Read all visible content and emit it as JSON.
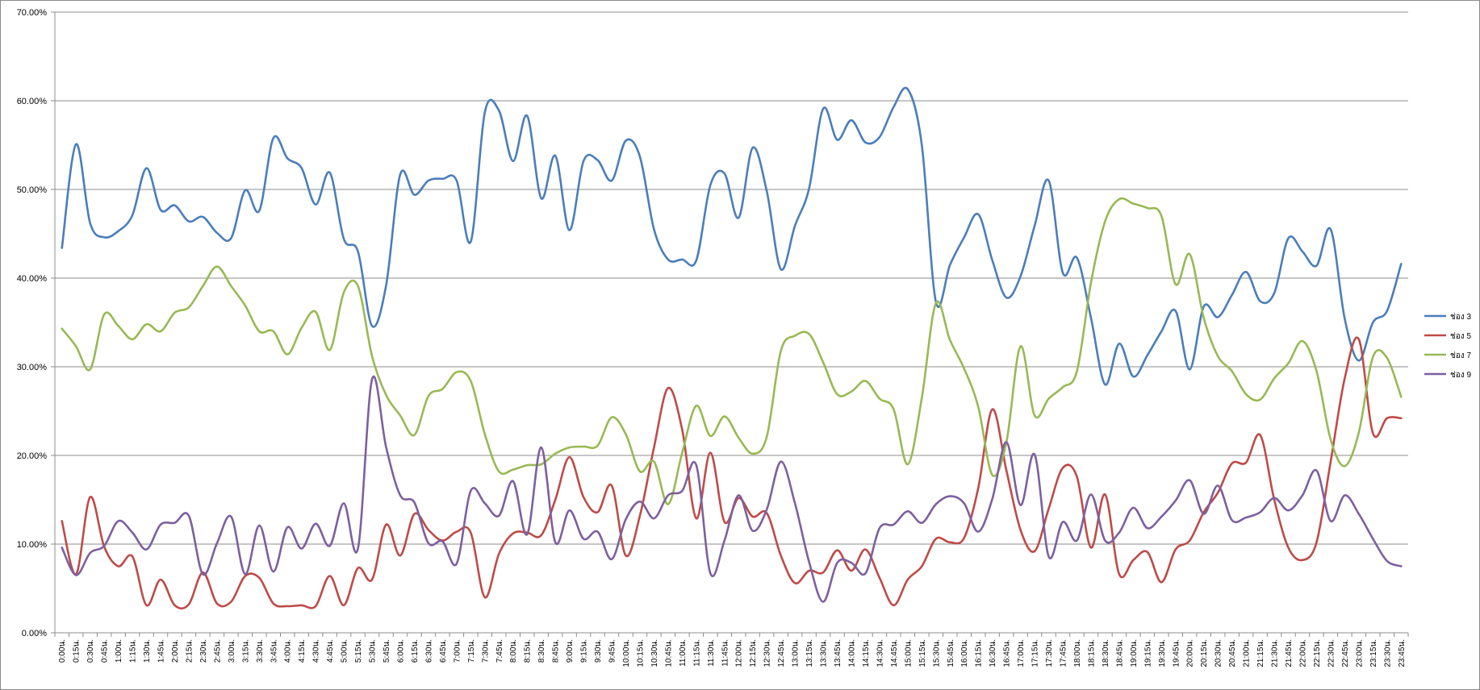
{
  "chart_data": {
    "type": "line",
    "title": "",
    "xlabel": "",
    "ylabel": "",
    "ylim": [
      0,
      0.7
    ],
    "y_ticks": [
      0,
      0.1,
      0.2,
      0.3,
      0.4,
      0.5,
      0.6,
      0.7
    ],
    "y_tick_labels": [
      "0.00%",
      "10.00%",
      "20.00%",
      "30.00%",
      "40.00%",
      "50.00%",
      "60.00%",
      "70.00%"
    ],
    "grid": true,
    "legend_position": "right",
    "smooth": true,
    "x": [
      "0:00น.",
      "0:15น.",
      "0:30น.",
      "0:45น.",
      "1:00น.",
      "1:15น.",
      "1:30น.",
      "1:45น.",
      "2:00น.",
      "2:15น.",
      "2:30น.",
      "2:45น.",
      "3:00น.",
      "3:15น.",
      "3:30น.",
      "3:45น.",
      "4:00น.",
      "4:15น.",
      "4:30น.",
      "4:45น.",
      "5:00น.",
      "5:15น.",
      "5:30น.",
      "5:45น.",
      "6:00น.",
      "6:15น.",
      "6:30น.",
      "6:45น.",
      "7:00น.",
      "7:15น.",
      "7:30น.",
      "7:45น.",
      "8:00น.",
      "8:15น.",
      "8:30น.",
      "8:45น.",
      "9:00น.",
      "9:15น.",
      "9:30น.",
      "9:45น.",
      "10:00น.",
      "10:15น.",
      "10:30น.",
      "10:45น.",
      "11:00น.",
      "11:15น.",
      "11:30น.",
      "11:45น.",
      "12:00น.",
      "12:15น.",
      "12:30น.",
      "12:45น.",
      "13:00น.",
      "13:15น.",
      "13:30น.",
      "13:45น.",
      "14:00น.",
      "14:15น.",
      "14:30น.",
      "14:45น.",
      "15:00น.",
      "15:15น.",
      "15:30น.",
      "15:45น.",
      "16:00น.",
      "16:15น.",
      "16:30น.",
      "16:45น.",
      "17:00น.",
      "17:15น.",
      "17:30น.",
      "17:45น.",
      "18:00น.",
      "18:15น.",
      "18:30น.",
      "18:45น.",
      "19:00น.",
      "19:15น.",
      "19:30น.",
      "19:45น.",
      "20:00น.",
      "20:15น.",
      "20:30น.",
      "20:45น.",
      "21:00น.",
      "21:15น.",
      "21:30น.",
      "21:45น.",
      "22:00น.",
      "22:15น.",
      "22:30น.",
      "22:45น.",
      "23:00น.",
      "23:15น.",
      "23:30น.",
      "23:45น."
    ],
    "series": [
      {
        "name": "ช่อง 3",
        "color": "#4a7ebb",
        "values": [
          0.434,
          0.551,
          0.462,
          0.446,
          0.453,
          0.471,
          0.524,
          0.477,
          0.482,
          0.464,
          0.469,
          0.451,
          0.445,
          0.499,
          0.476,
          0.558,
          0.535,
          0.524,
          0.483,
          0.519,
          0.444,
          0.43,
          0.346,
          0.392,
          0.517,
          0.494,
          0.51,
          0.512,
          0.51,
          0.441,
          0.587,
          0.589,
          0.532,
          0.583,
          0.49,
          0.538,
          0.454,
          0.532,
          0.533,
          0.51,
          0.555,
          0.537,
          0.455,
          0.421,
          0.421,
          0.42,
          0.505,
          0.518,
          0.468,
          0.547,
          0.498,
          0.41,
          0.459,
          0.501,
          0.591,
          0.556,
          0.578,
          0.553,
          0.559,
          0.593,
          0.613,
          0.55,
          0.373,
          0.415,
          0.446,
          0.472,
          0.42,
          0.378,
          0.402,
          0.459,
          0.51,
          0.406,
          0.423,
          0.355,
          0.28,
          0.326,
          0.289,
          0.313,
          0.34,
          0.363,
          0.297,
          0.368,
          0.356,
          0.381,
          0.407,
          0.374,
          0.383,
          0.445,
          0.43,
          0.414,
          0.455,
          0.354,
          0.307,
          0.35,
          0.363,
          0.416
        ]
      },
      {
        "name": "ช่อง 5",
        "color": "#be4b48",
        "values": [
          0.126,
          0.066,
          0.153,
          0.097,
          0.075,
          0.086,
          0.031,
          0.06,
          0.031,
          0.032,
          0.068,
          0.033,
          0.035,
          0.064,
          0.062,
          0.033,
          0.03,
          0.031,
          0.03,
          0.064,
          0.031,
          0.073,
          0.06,
          0.122,
          0.087,
          0.134,
          0.116,
          0.104,
          0.114,
          0.113,
          0.04,
          0.089,
          0.112,
          0.113,
          0.11,
          0.15,
          0.198,
          0.153,
          0.136,
          0.166,
          0.087,
          0.132,
          0.209,
          0.276,
          0.229,
          0.129,
          0.203,
          0.125,
          0.152,
          0.131,
          0.135,
          0.087,
          0.056,
          0.07,
          0.068,
          0.093,
          0.07,
          0.094,
          0.062,
          0.031,
          0.06,
          0.075,
          0.106,
          0.102,
          0.107,
          0.163,
          0.252,
          0.183,
          0.116,
          0.092,
          0.14,
          0.186,
          0.176,
          0.096,
          0.156,
          0.066,
          0.082,
          0.091,
          0.057,
          0.094,
          0.104,
          0.136,
          0.158,
          0.191,
          0.192,
          0.223,
          0.15,
          0.096,
          0.082,
          0.102,
          0.193,
          0.287,
          0.331,
          0.225,
          0.242,
          0.242
        ]
      },
      {
        "name": "ช่อง 7",
        "color": "#98b954",
        "values": [
          0.343,
          0.323,
          0.297,
          0.359,
          0.346,
          0.331,
          0.348,
          0.34,
          0.361,
          0.367,
          0.391,
          0.413,
          0.391,
          0.369,
          0.34,
          0.34,
          0.314,
          0.344,
          0.362,
          0.319,
          0.384,
          0.391,
          0.312,
          0.268,
          0.245,
          0.223,
          0.267,
          0.275,
          0.294,
          0.284,
          0.224,
          0.182,
          0.184,
          0.189,
          0.19,
          0.202,
          0.209,
          0.21,
          0.211,
          0.243,
          0.224,
          0.182,
          0.193,
          0.145,
          0.203,
          0.256,
          0.222,
          0.244,
          0.22,
          0.202,
          0.221,
          0.318,
          0.335,
          0.337,
          0.305,
          0.269,
          0.272,
          0.284,
          0.264,
          0.252,
          0.19,
          0.265,
          0.372,
          0.33,
          0.298,
          0.255,
          0.178,
          0.215,
          0.323,
          0.245,
          0.264,
          0.277,
          0.295,
          0.395,
          0.464,
          0.489,
          0.484,
          0.479,
          0.47,
          0.393,
          0.427,
          0.355,
          0.312,
          0.295,
          0.269,
          0.263,
          0.287,
          0.304,
          0.329,
          0.295,
          0.218,
          0.188,
          0.226,
          0.311,
          0.31,
          0.266
        ]
      },
      {
        "name": "ช่อง 9",
        "color": "#7d60a0",
        "values": [
          0.096,
          0.065,
          0.09,
          0.098,
          0.126,
          0.113,
          0.094,
          0.122,
          0.124,
          0.132,
          0.066,
          0.101,
          0.131,
          0.066,
          0.121,
          0.069,
          0.119,
          0.095,
          0.123,
          0.098,
          0.146,
          0.095,
          0.286,
          0.209,
          0.155,
          0.147,
          0.101,
          0.103,
          0.078,
          0.16,
          0.146,
          0.132,
          0.171,
          0.111,
          0.209,
          0.102,
          0.138,
          0.106,
          0.114,
          0.083,
          0.128,
          0.148,
          0.129,
          0.155,
          0.16,
          0.189,
          0.067,
          0.104,
          0.155,
          0.115,
          0.139,
          0.193,
          0.146,
          0.08,
          0.035,
          0.079,
          0.079,
          0.067,
          0.118,
          0.122,
          0.137,
          0.124,
          0.145,
          0.154,
          0.146,
          0.114,
          0.151,
          0.215,
          0.144,
          0.201,
          0.086,
          0.125,
          0.104,
          0.156,
          0.104,
          0.113,
          0.141,
          0.118,
          0.131,
          0.149,
          0.172,
          0.134,
          0.166,
          0.127,
          0.13,
          0.136,
          0.152,
          0.138,
          0.155,
          0.183,
          0.126,
          0.155,
          0.134,
          0.106,
          0.081,
          0.075
        ]
      }
    ]
  }
}
